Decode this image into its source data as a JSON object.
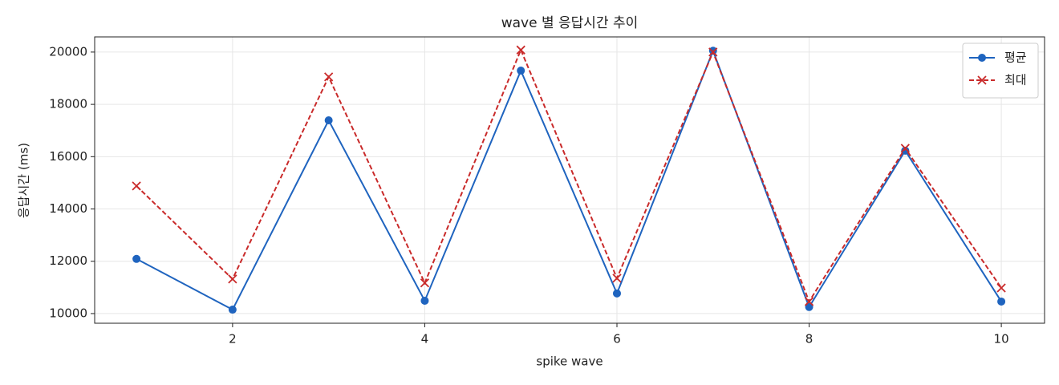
{
  "chart_data": {
    "type": "line",
    "title": "wave 별 응답시간 추이",
    "x_label": "spike wave",
    "y_label": "응답시간 (ms)",
    "x": [
      1,
      2,
      3,
      4,
      5,
      6,
      7,
      8,
      9,
      10
    ],
    "series": [
      {
        "name": "평균",
        "color": "#1f64bf",
        "dash": "solid",
        "marker": "circle",
        "values": [
          12090,
          10150,
          17390,
          10490,
          19290,
          10770,
          20050,
          10250,
          16230,
          10460
        ]
      },
      {
        "name": "최대",
        "color": "#c92a2a",
        "dash": "dashed",
        "marker": "x",
        "values": [
          14880,
          11320,
          19050,
          11170,
          20080,
          11350,
          20000,
          10460,
          16320,
          10980
        ]
      }
    ],
    "xlim": [
      0.565,
      10.45
    ],
    "ylim": [
      9630,
      20580
    ],
    "xticks": [
      2,
      4,
      6,
      8,
      10
    ],
    "yticks": [
      10000,
      12000,
      14000,
      16000,
      18000,
      20000
    ],
    "grid": true,
    "legend": "upper-right"
  }
}
